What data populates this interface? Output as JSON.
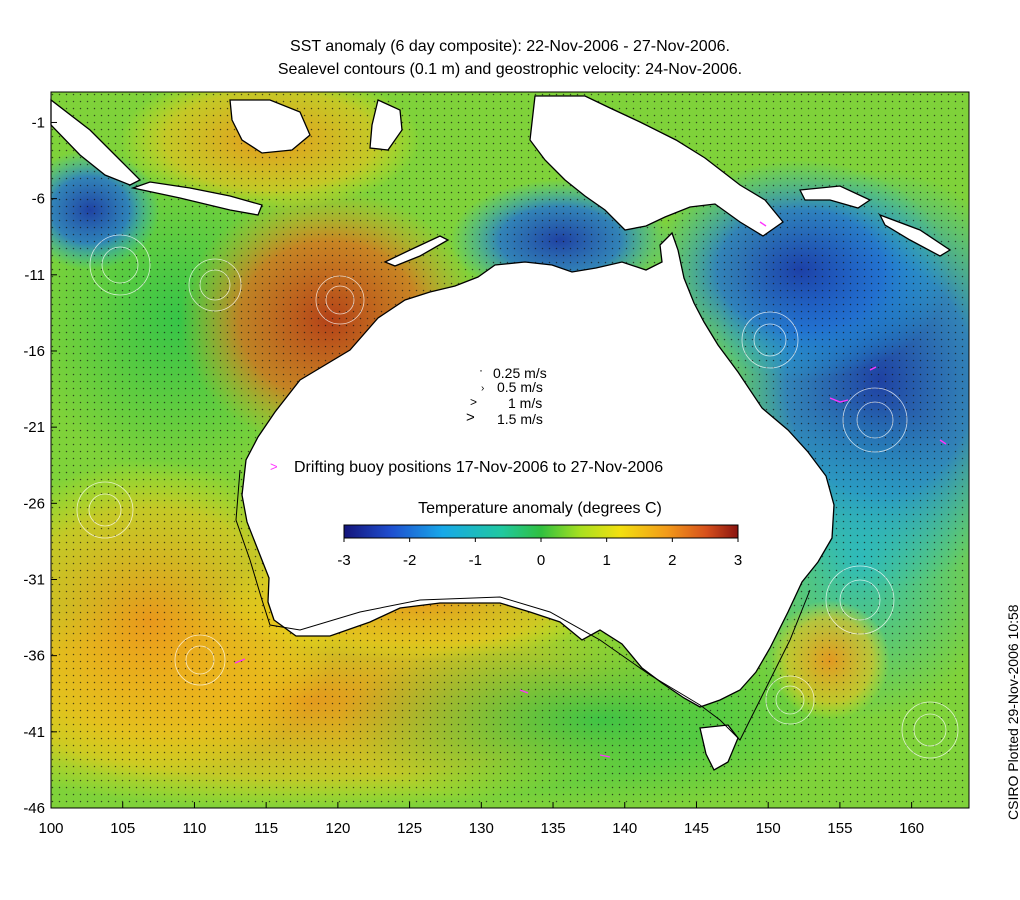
{
  "title": {
    "line1": "SST anomaly (6 day composite): 22-Nov-2006 - 27-Nov-2006.",
    "line2": "Sealevel contours (0.1 m) and geostrophic velocity: 24-Nov-2006."
  },
  "credit": "CSIRO Plotted 29-Nov-2006 10:58",
  "map": {
    "lon_range": [
      100,
      164
    ],
    "lat_range": [
      -46,
      1
    ],
    "x_ticks": [
      "100",
      "105",
      "110",
      "115",
      "120",
      "125",
      "130",
      "135",
      "140",
      "145",
      "150",
      "155",
      "160"
    ],
    "y_ticks": [
      "-1",
      "-6",
      "-11",
      "-16",
      "-21",
      "-26",
      "-31",
      "-36",
      "-41",
      "-46"
    ]
  },
  "velocity_key": [
    "0.25 m/s",
    "0.5 m/s",
    "1 m/s",
    "1.5 m/s"
  ],
  "buoy_legend": "Drifting buoy positions 17-Nov-2006 to 27-Nov-2006",
  "colorbar": {
    "label": "Temperature anomaly (degrees C)",
    "ticks": [
      "-3",
      "-2",
      "-1",
      "0",
      "1",
      "2",
      "3"
    ],
    "range": [
      -3,
      3
    ]
  },
  "colors": {
    "land": "#ffffff",
    "coast": "#000000",
    "buoy": "#ff33ff",
    "scale": [
      "#1a1a8c",
      "#1f5fd6",
      "#18b4e8",
      "#1fbe5a",
      "#7ed62a",
      "#f2e10f",
      "#f29a1a",
      "#d6561c",
      "#9a1e12"
    ]
  }
}
